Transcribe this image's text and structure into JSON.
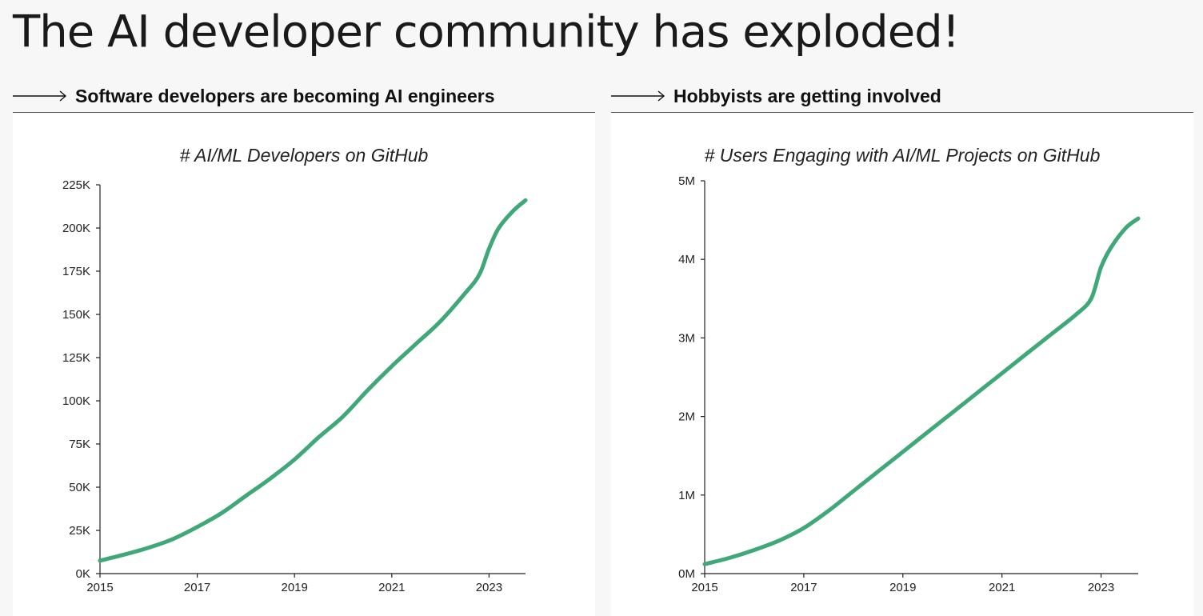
{
  "page_title": "The AI developer community has exploded!",
  "sections": [
    {
      "heading": "Software developers are becoming AI engineers",
      "arrow_icon": "long-right-arrow-icon"
    },
    {
      "heading": "Hobbyists are getting involved",
      "arrow_icon": "long-right-arrow-icon"
    }
  ],
  "colors": {
    "line": "#3fa878",
    "axis": "#222222",
    "background": "#f7f7f7",
    "panel": "#ffffff"
  },
  "chart_data": [
    {
      "type": "line",
      "title": "# AI/ML Developers on GitHub",
      "xlabel": "",
      "ylabel": "",
      "xlim": [
        2015,
        2023.75
      ],
      "ylim": [
        0,
        225000
      ],
      "x_ticks": [
        2015,
        2017,
        2019,
        2021,
        2023
      ],
      "x_tick_labels": [
        "2015",
        "2017",
        "2019",
        "2021",
        "2023"
      ],
      "y_ticks": [
        0,
        25000,
        50000,
        75000,
        100000,
        125000,
        150000,
        175000,
        200000,
        225000
      ],
      "y_tick_labels": [
        "0K",
        "25K",
        "50K",
        "75K",
        "100K",
        "125K",
        "150K",
        "175K",
        "200K",
        "225K"
      ],
      "grid": false,
      "series": [
        {
          "x": [
            2015,
            2015.5,
            2016,
            2016.5,
            2017,
            2017.5,
            2018,
            2018.5,
            2019,
            2019.5,
            2020,
            2020.5,
            2021,
            2021.5,
            2022,
            2022.5,
            2022.8,
            2023,
            2023.2,
            2023.5,
            2023.75
          ],
          "y": [
            7500,
            11000,
            15000,
            20000,
            27000,
            35000,
            45000,
            55000,
            66000,
            79000,
            91000,
            106000,
            120000,
            133000,
            146000,
            162000,
            173000,
            188000,
            200000,
            210000,
            216000
          ]
        }
      ]
    },
    {
      "type": "line",
      "title": "# Users Engaging with AI/ML Projects on GitHub",
      "xlabel": "",
      "ylabel": "",
      "xlim": [
        2015,
        2023.75
      ],
      "ylim": [
        0,
        5000000
      ],
      "x_ticks": [
        2015,
        2017,
        2019,
        2021,
        2023
      ],
      "x_tick_labels": [
        "2015",
        "2017",
        "2019",
        "2021",
        "2023"
      ],
      "y_ticks": [
        0,
        1000000,
        2000000,
        3000000,
        4000000,
        5000000
      ],
      "y_tick_labels": [
        "0M",
        "1M",
        "2M",
        "3M",
        "4M",
        "5M"
      ],
      "grid": false,
      "series": [
        {
          "x": [
            2015,
            2015.5,
            2016,
            2016.5,
            2017,
            2017.5,
            2018,
            2018.5,
            2019,
            2019.5,
            2020,
            2020.5,
            2021,
            2021.5,
            2022,
            2022.5,
            2022.8,
            2023,
            2023.2,
            2023.5,
            2023.75
          ],
          "y": [
            120000,
            200000,
            300000,
            420000,
            580000,
            800000,
            1050000,
            1300000,
            1550000,
            1800000,
            2050000,
            2300000,
            2550000,
            2800000,
            3050000,
            3300000,
            3500000,
            3900000,
            4150000,
            4400000,
            4520000
          ]
        }
      ]
    }
  ]
}
